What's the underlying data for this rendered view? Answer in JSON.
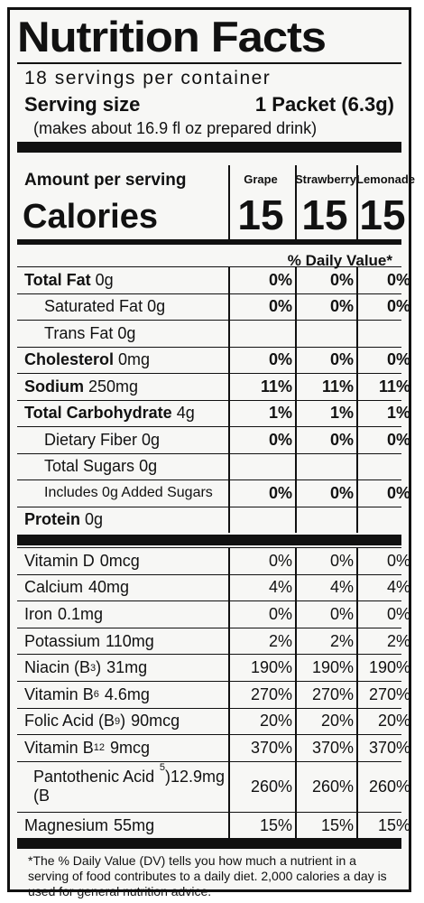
{
  "label": {
    "title": "Nutrition Facts",
    "servings_per_container": "18 servings per container",
    "serving_size_label": "Serving size",
    "serving_size_value": "1 Packet (6.3g)",
    "serving_note": "(makes about 16.9 fl oz prepared drink)",
    "amount_per_serving": "Amount per serving",
    "calories_label": "Calories",
    "daily_value_header": "% Daily Value*",
    "columns": [
      {
        "name": "Grape",
        "calories": "15"
      },
      {
        "name": "Strawberry",
        "calories": "15"
      },
      {
        "name": "Lemonade",
        "calories": "15"
      }
    ],
    "nutrients": [
      {
        "name": "Total Fat",
        "amount": "0g",
        "bold": true,
        "indent": 0,
        "dv": [
          "0%",
          "0%",
          "0%"
        ]
      },
      {
        "name": "Saturated Fat",
        "amount": "0g",
        "bold": false,
        "indent": 1,
        "dv": [
          "0%",
          "0%",
          "0%"
        ]
      },
      {
        "name": "Trans Fat",
        "amount": "0g",
        "bold": false,
        "indent": 1,
        "dv": [
          "",
          "",
          ""
        ]
      },
      {
        "name": "Cholesterol",
        "amount": "0mg",
        "bold": true,
        "indent": 0,
        "dv": [
          "0%",
          "0%",
          "0%"
        ]
      },
      {
        "name": "Sodium",
        "amount": "250mg",
        "bold": true,
        "indent": 0,
        "dv": [
          "11%",
          "11%",
          "11%"
        ]
      },
      {
        "name": "Total Carbohydrate",
        "amount": "4g",
        "bold": true,
        "indent": 0,
        "dv": [
          "1%",
          "1%",
          "1%"
        ]
      },
      {
        "name": "Dietary Fiber",
        "amount": "0g",
        "bold": false,
        "indent": 1,
        "dv": [
          "0%",
          "0%",
          "0%"
        ]
      },
      {
        "name": "Total Sugars",
        "amount": "0g",
        "bold": false,
        "indent": 1,
        "dv": [
          "",
          "",
          ""
        ]
      },
      {
        "name": "Includes 0g Added Sugars",
        "amount": "",
        "bold": false,
        "indent": 2,
        "dv": [
          "0%",
          "0%",
          "0%"
        ]
      },
      {
        "name": "Protein",
        "amount": "0g",
        "bold": true,
        "indent": 0,
        "dv": [
          "",
          "",
          ""
        ]
      }
    ],
    "vitamins": [
      {
        "name": "Vitamin D",
        "sub": "",
        "amount": "0mcg",
        "dv": [
          "0%",
          "0%",
          "0%"
        ]
      },
      {
        "name": "Calcium",
        "sub": "",
        "amount": "40mg",
        "dv": [
          "4%",
          "4%",
          "4%"
        ]
      },
      {
        "name": "Iron",
        "sub": "",
        "amount": "0.1mg",
        "dv": [
          "0%",
          "0%",
          "0%"
        ]
      },
      {
        "name": "Potassium",
        "sub": "",
        "amount": "110mg",
        "dv": [
          "2%",
          "2%",
          "2%"
        ]
      },
      {
        "name": "Niacin (B",
        "sub": "3",
        "suffix": ")",
        "amount": "31mg",
        "dv": [
          "190%",
          "190%",
          "190%"
        ]
      },
      {
        "name": "Vitamin B",
        "sub": "6",
        "suffix": "",
        "amount": "4.6mg",
        "dv": [
          "270%",
          "270%",
          "270%"
        ]
      },
      {
        "name": "Folic Acid (B",
        "sub": "9",
        "suffix": ")",
        "amount": "90mcg",
        "dv": [
          "20%",
          "20%",
          "20%"
        ]
      },
      {
        "name": "Vitamin B",
        "sub": "12",
        "suffix": "",
        "amount": "9mcg",
        "dv": [
          "370%",
          "370%",
          "370%"
        ]
      },
      {
        "name": "Pantothenic Acid (B",
        "sub": "5",
        "suffix": ")",
        "amount": "12.9mg",
        "dv": [
          "260%",
          "260%",
          "260%"
        ]
      },
      {
        "name": "Magnesium",
        "sub": "",
        "amount": "55mg",
        "dv": [
          "15%",
          "15%",
          "15%"
        ]
      }
    ],
    "footnote": "*The % Daily Value (DV) tells you how much a nutrient in a serving of food contributes to a daily diet. 2,000 calories a day is used for general nutrition advice."
  }
}
